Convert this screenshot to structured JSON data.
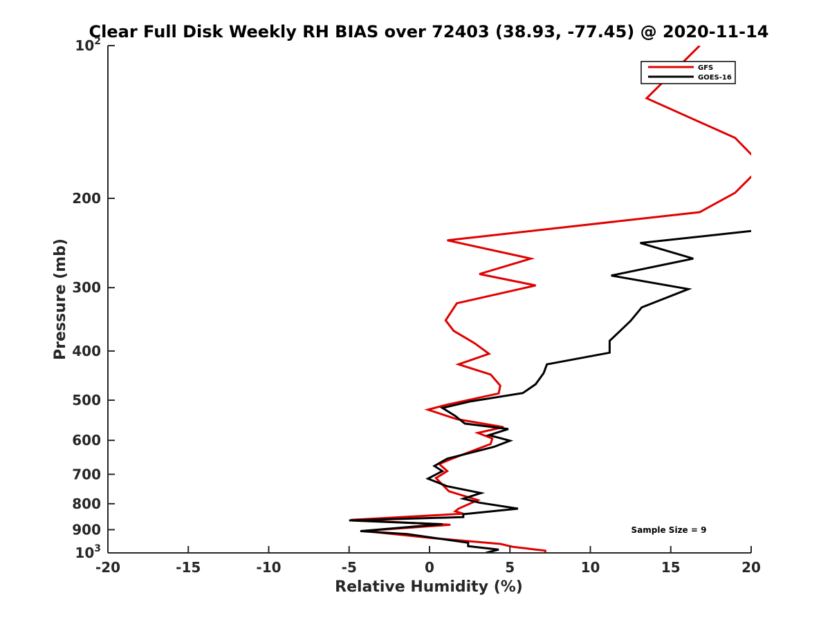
{
  "chart_data": {
    "type": "line",
    "title": "Clear Full Disk Weekly RH BIAS over 72403 (38.93, -77.45) @ 2020-11-14",
    "xlabel": "Relative Humidity (%)",
    "ylabel": "Pressure (mb)",
    "xlim": [
      -20,
      20
    ],
    "ylim": [
      100,
      1000
    ],
    "y_scale": "log",
    "y_reversed": true,
    "x_ticks": [
      {
        "value": -20,
        "label": "-20"
      },
      {
        "value": -15,
        "label": "-15"
      },
      {
        "value": -10,
        "label": "-10"
      },
      {
        "value": -5,
        "label": "-5"
      },
      {
        "value": 0,
        "label": "0"
      },
      {
        "value": 5,
        "label": "5"
      },
      {
        "value": 10,
        "label": "10"
      },
      {
        "value": 15,
        "label": "15"
      },
      {
        "value": 20,
        "label": "20"
      }
    ],
    "y_ticks": [
      {
        "value": 100,
        "label": "10",
        "sup": "2"
      },
      {
        "value": 200,
        "label": "200"
      },
      {
        "value": 300,
        "label": "300"
      },
      {
        "value": 400,
        "label": "400"
      },
      {
        "value": 500,
        "label": "500"
      },
      {
        "value": 600,
        "label": "600"
      },
      {
        "value": 700,
        "label": "700"
      },
      {
        "value": 800,
        "label": "800"
      },
      {
        "value": 900,
        "label": "900"
      },
      {
        "value": 1000,
        "label": "10",
        "sup": "3"
      }
    ],
    "grid": false,
    "legend_position": "top-right",
    "annotation": "Sample Size = 9",
    "series": [
      {
        "name": "GFS",
        "color": "#e00000",
        "points": [
          [
            16.8,
            100
          ],
          [
            13.5,
            127
          ],
          [
            19,
            152
          ],
          [
            20.1,
            165
          ],
          [
            20.1,
            180
          ],
          [
            19,
            195
          ],
          [
            16.8,
            213
          ],
          [
            1.1,
            242
          ],
          [
            6.3,
            263
          ],
          [
            3.1,
            282
          ],
          [
            6.6,
            297
          ],
          [
            1.7,
            322
          ],
          [
            1.0,
            348
          ],
          [
            1.5,
            365
          ],
          [
            2.8,
            386
          ],
          [
            3.7,
            405
          ],
          [
            1.8,
            425
          ],
          [
            3.8,
            445
          ],
          [
            4.4,
            468
          ],
          [
            4.3,
            485
          ],
          [
            1.1,
            510
          ],
          [
            -0.1,
            522
          ],
          [
            1.7,
            545
          ],
          [
            4.6,
            565
          ],
          [
            3.0,
            580
          ],
          [
            3.9,
            595
          ],
          [
            3.8,
            610
          ],
          [
            1.4,
            652
          ],
          [
            0.6,
            668
          ],
          [
            1.1,
            690
          ],
          [
            0.4,
            712
          ],
          [
            1.2,
            756
          ],
          [
            3.0,
            787
          ],
          [
            1.8,
            818
          ],
          [
            1.6,
            828
          ],
          [
            2.1,
            837
          ],
          [
            -4.9,
            861
          ],
          [
            1.3,
            880
          ],
          [
            -4.1,
            905
          ],
          [
            0.2,
            935
          ],
          [
            4.4,
            960
          ],
          [
            5.2,
            973
          ],
          [
            7.2,
            990
          ],
          [
            7.2,
            1000
          ]
        ]
      },
      {
        "name": "GOES-16",
        "color": "#000000",
        "points": [
          [
            20,
            232
          ],
          [
            13.1,
            245
          ],
          [
            16.4,
            263
          ],
          [
            11.3,
            284
          ],
          [
            16.1,
            302
          ],
          [
            13.2,
            328
          ],
          [
            12.5,
            349
          ],
          [
            11.7,
            369
          ],
          [
            11.2,
            382
          ],
          [
            11.2,
            403
          ],
          [
            7.3,
            425
          ],
          [
            7.1,
            442
          ],
          [
            6.6,
            465
          ],
          [
            5.8,
            484
          ],
          [
            2.5,
            503
          ],
          [
            0.8,
            518
          ],
          [
            1.6,
            537
          ],
          [
            2.2,
            556
          ],
          [
            4.9,
            570
          ],
          [
            3.7,
            586
          ],
          [
            5.0,
            601
          ],
          [
            4.0,
            618
          ],
          [
            1.1,
            652
          ],
          [
            0.3,
            674
          ],
          [
            0.8,
            690
          ],
          [
            -0.1,
            714
          ],
          [
            1.1,
            739
          ],
          [
            3.2,
            762
          ],
          [
            2.1,
            782
          ],
          [
            3.1,
            796
          ],
          [
            5.5,
            818
          ],
          [
            2.1,
            839
          ],
          [
            2.1,
            850
          ],
          [
            -5.0,
            863
          ],
          [
            0.8,
            878
          ],
          [
            -4.3,
            906
          ],
          [
            -1.4,
            918
          ],
          [
            2.4,
            955
          ],
          [
            2.4,
            970
          ],
          [
            4.3,
            985
          ],
          [
            3.5,
            1000
          ]
        ]
      }
    ]
  }
}
